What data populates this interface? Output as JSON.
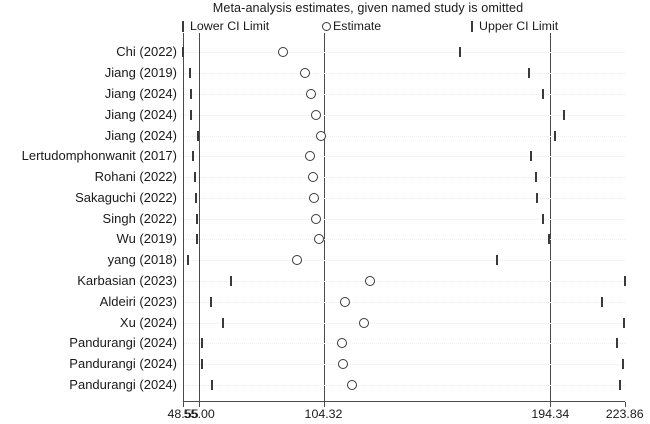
{
  "chart_data": {
    "type": "scatter",
    "subtype": "leave-one-out-forest-plot",
    "title": "Meta-analysis estimates, given named study is omitted",
    "legend": [
      {
        "symbol": "tick-icon",
        "label": "Lower CI Limit"
      },
      {
        "symbol": "circle-icon",
        "label": "Estimate"
      },
      {
        "symbol": "tick-icon",
        "label": "Upper CI Limit"
      }
    ],
    "legend_position": "top",
    "grid": "dotted-row-guides",
    "x_axis": {
      "min": 48.55,
      "max": 223.86,
      "tick_values": [
        48.55,
        55.0,
        104.32,
        194.34,
        223.86
      ],
      "tick_labels": [
        "48.55",
        "55.00",
        "104.32",
        "194.34",
        "223.86"
      ]
    },
    "reference_lines": [
      48.55,
      55.0,
      104.32,
      194.34
    ],
    "overall": {
      "lower": 55.0,
      "estimate": 104.32,
      "upper": 194.34
    },
    "studies": [
      {
        "label": "Chi (2022)",
        "lower": 48.55,
        "estimate": 88.2,
        "upper": 158.5
      },
      {
        "label": "Jiang (2019)",
        "lower": 51.2,
        "estimate": 96.9,
        "upper": 185.9
      },
      {
        "label": "Jiang (2024)",
        "lower": 51.6,
        "estimate": 99.2,
        "upper": 191.5
      },
      {
        "label": "Jiang (2024)",
        "lower": 51.6,
        "estimate": 101.2,
        "upper": 199.6
      },
      {
        "label": "Jiang (2024)",
        "lower": 54.5,
        "estimate": 103.2,
        "upper": 196.3
      },
      {
        "label": "Lertudomphonwanit (2017)",
        "lower": 52.5,
        "estimate": 98.9,
        "upper": 186.8
      },
      {
        "label": "Rohani (2022)",
        "lower": 53.2,
        "estimate": 100.1,
        "upper": 188.6
      },
      {
        "label": "Sakaguchi (2022)",
        "lower": 53.6,
        "estimate": 100.4,
        "upper": 189.0
      },
      {
        "label": "Singh (2022)",
        "lower": 53.9,
        "estimate": 101.2,
        "upper": 191.3
      },
      {
        "label": "Wu (2019)",
        "lower": 54.2,
        "estimate": 102.5,
        "upper": 193.7
      },
      {
        "label": "yang (2018)",
        "lower": 50.5,
        "estimate": 93.6,
        "upper": 173.1
      },
      {
        "label": "Karbasian (2023)",
        "lower": 67.6,
        "estimate": 122.9,
        "upper": 223.86
      },
      {
        "label": "Aldeiri (2023)",
        "lower": 59.5,
        "estimate": 112.9,
        "upper": 215.0
      },
      {
        "label": "Xu (2024)",
        "lower": 64.6,
        "estimate": 120.3,
        "upper": 223.4
      },
      {
        "label": "Pandurangi (2024)",
        "lower": 55.9,
        "estimate": 111.5,
        "upper": 220.7
      },
      {
        "label": "Pandurangi (2024)",
        "lower": 55.9,
        "estimate": 112.0,
        "upper": 223.2
      },
      {
        "label": "Pandurangi (2024)",
        "lower": 59.9,
        "estimate": 115.7,
        "upper": 221.8
      }
    ]
  },
  "colors": {
    "background": "#ffffff",
    "text": "#1a1a1a",
    "line": "#4a4a4a",
    "marker": "#3a3a3a",
    "row_guide": "#ececec"
  }
}
